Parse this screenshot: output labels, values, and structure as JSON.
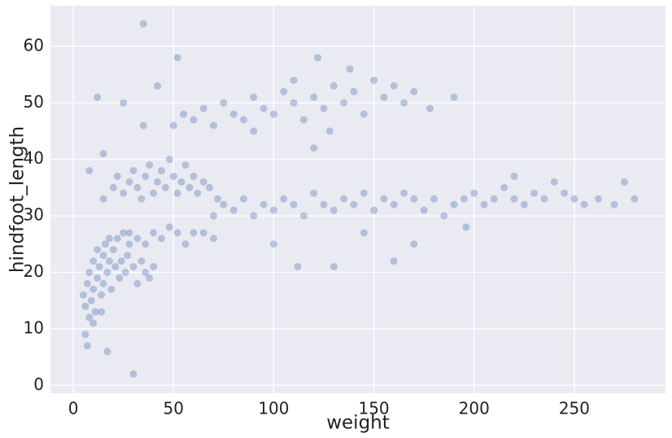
{
  "chart_data": {
    "type": "scatter",
    "x_label": "weight",
    "y_label": "hindfoot_length",
    "color": "#4c72b0",
    "grid": true,
    "xlim": [
      -11.4,
      295.5
    ],
    "ylim": [
      -1.4,
      67.2
    ],
    "xticks": [
      0,
      50,
      100,
      150,
      200,
      250
    ],
    "yticks": [
      0,
      10,
      20,
      30,
      40,
      50,
      60
    ],
    "x": [
      5,
      6,
      7,
      8,
      8,
      9,
      10,
      10,
      11,
      12,
      12,
      13,
      14,
      15,
      15,
      16,
      17,
      18,
      18,
      19,
      20,
      21,
      22,
      23,
      24,
      25,
      26,
      27,
      28,
      30,
      32,
      34,
      36,
      38,
      40,
      6,
      7,
      17,
      10,
      14,
      28,
      32,
      36,
      40,
      44,
      48,
      52,
      56,
      60,
      65,
      70,
      15,
      20,
      22,
      25,
      28,
      30,
      32,
      34,
      36,
      38,
      40,
      42,
      44,
      46,
      48,
      50,
      52,
      54,
      56,
      58,
      60,
      62,
      65,
      68,
      72,
      70,
      75,
      80,
      85,
      90,
      95,
      100,
      105,
      110,
      115,
      120,
      125,
      130,
      135,
      140,
      145,
      150,
      155,
      160,
      165,
      170,
      175,
      180,
      185,
      190,
      195,
      200,
      205,
      210,
      215,
      220,
      225,
      230,
      235,
      240,
      245,
      250,
      255,
      262,
      270,
      275,
      280,
      100,
      145,
      112,
      130,
      220,
      196,
      50,
      55,
      60,
      65,
      70,
      75,
      80,
      85,
      90,
      95,
      100,
      105,
      110,
      115,
      120,
      125,
      130,
      135,
      140,
      145,
      150,
      155,
      160,
      165,
      170,
      178,
      128,
      138,
      110,
      120,
      90,
      42,
      35,
      25,
      35,
      30,
      52,
      12,
      8,
      15,
      122,
      190,
      160,
      170
    ],
    "values": [
      16,
      14,
      18,
      12,
      20,
      15,
      22,
      17,
      13,
      19,
      24,
      21,
      16,
      23,
      18,
      25,
      20,
      22,
      26,
      17,
      24,
      21,
      26,
      19,
      22,
      27,
      20,
      23,
      25,
      21,
      18,
      22,
      20,
      19,
      21,
      9,
      7,
      6,
      11,
      13,
      27,
      26,
      25,
      27,
      26,
      28,
      27,
      25,
      27,
      27,
      26,
      33,
      35,
      37,
      34,
      36,
      38,
      35,
      33,
      37,
      39,
      34,
      36,
      38,
      35,
      40,
      37,
      34,
      36,
      39,
      35,
      37,
      34,
      36,
      35,
      33,
      30,
      32,
      31,
      33,
      30,
      32,
      31,
      33,
      32,
      30,
      34,
      32,
      31,
      33,
      32,
      34,
      31,
      33,
      32,
      34,
      33,
      31,
      33,
      30,
      32,
      33,
      34,
      32,
      33,
      35,
      33,
      32,
      34,
      33,
      36,
      34,
      33,
      32,
      33,
      32,
      36,
      33,
      25,
      27,
      21,
      21,
      37,
      28,
      46,
      48,
      47,
      49,
      46,
      50,
      48,
      47,
      51,
      49,
      48,
      52,
      50,
      47,
      51,
      49,
      53,
      50,
      52,
      48,
      54,
      51,
      53,
      50,
      52,
      49,
      45,
      56,
      54,
      42,
      45,
      53,
      46,
      50,
      64,
      2,
      58,
      51,
      38,
      41,
      58,
      51,
      22,
      25
    ]
  }
}
